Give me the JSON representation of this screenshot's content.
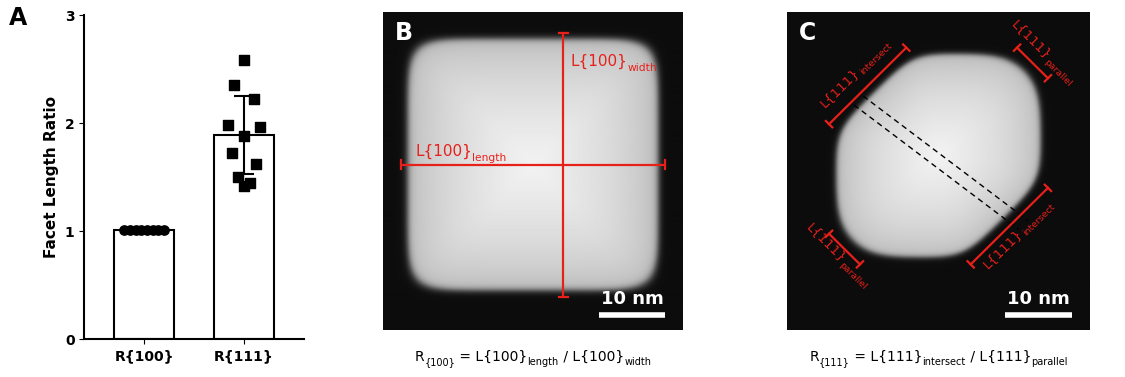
{
  "chart_data": {
    "type": "bar",
    "panel": "A",
    "categories": [
      "R{100}",
      "R{111}"
    ],
    "values": [
      1.01,
      1.89
    ],
    "errors": [
      0.01,
      0.36
    ],
    "color": "#ffffff",
    "ylabel": "Facet Length Ratio",
    "ylim": [
      0,
      3
    ],
    "yticks": [
      0,
      1,
      2,
      3
    ],
    "points": [
      {
        "marker": "circle",
        "values": [
          1.01,
          1.01,
          1.01,
          1.01,
          1.01,
          1.01,
          1.01,
          1.01
        ]
      },
      {
        "marker": "square",
        "values": [
          2.58,
          2.35,
          2.22,
          1.98,
          1.96,
          1.88,
          1.72,
          1.62,
          1.5,
          1.45,
          1.42
        ]
      }
    ]
  },
  "images": [
    {
      "panel": "B",
      "labels": [
        [
          [
            "L{100}",
            false
          ],
          [
            "length",
            true
          ]
        ],
        [
          [
            "L{100}",
            false
          ],
          [
            "width",
            true
          ]
        ]
      ],
      "scale_bar": "10 nm",
      "caption": [
        [
          "R",
          false
        ],
        [
          "{100}",
          true
        ],
        [
          " = L{100}",
          false
        ],
        [
          "length",
          true
        ],
        [
          " / L{100}",
          false
        ],
        [
          "width",
          true
        ]
      ]
    },
    {
      "panel": "C",
      "labels": [
        [
          [
            "L{111}",
            false
          ],
          [
            "intersect",
            true
          ]
        ],
        [
          [
            "L{111}",
            false
          ],
          [
            "parallel",
            true
          ]
        ],
        [
          [
            "L{111}",
            false
          ],
          [
            "parallel",
            true
          ]
        ],
        [
          [
            "L{111}",
            false
          ],
          [
            "intersect",
            true
          ]
        ]
      ],
      "scale_bar": "10 nm",
      "caption": [
        [
          "R",
          false
        ],
        [
          "{111}",
          true
        ],
        [
          " = L{111}",
          false
        ],
        [
          "intersect",
          true
        ],
        [
          " / L{111}",
          false
        ],
        [
          "parallel",
          true
        ]
      ]
    }
  ]
}
